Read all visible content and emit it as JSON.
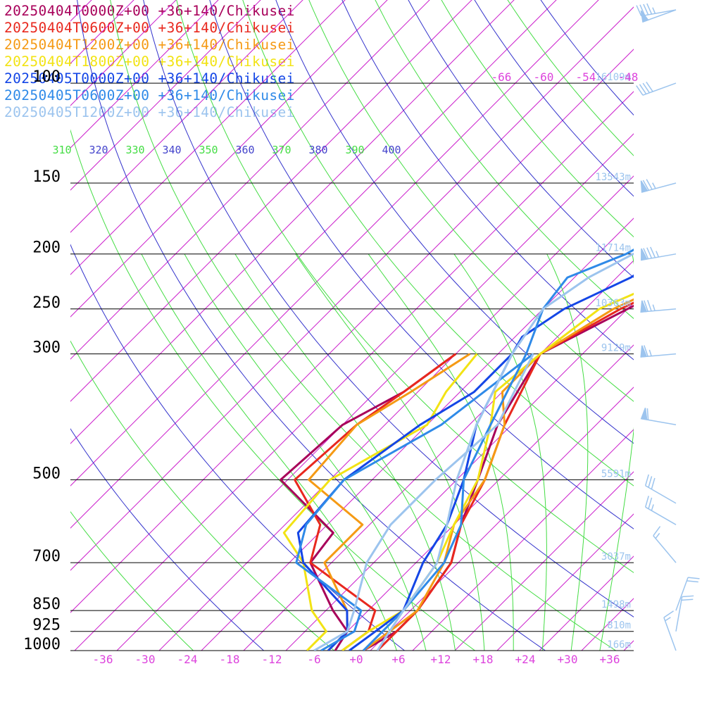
{
  "chart_data": {
    "type": "line",
    "title": "",
    "legend": {
      "placement": "top-left",
      "entries": [
        {
          "label": "20250404T0000Z+00 +36+140/Chikusei",
          "color": "#a8005a"
        },
        {
          "label": "20250404T0600Z+00 +36+140/Chikusei",
          "color": "#e8281e"
        },
        {
          "label": "20250404T1200Z+00 +36+140/Chikusei",
          "color": "#f59a14"
        },
        {
          "label": "20250404T1800Z+00 +36+140/Chikusei",
          "color": "#f2e314"
        },
        {
          "label": "20250405T0000Z+00 +36+140/Chikusei",
          "color": "#1446e6"
        },
        {
          "label": "20250405T0600Z+00 +36+140/Chikusei",
          "color": "#2f8ae8"
        },
        {
          "label": "20250405T1200Z+00 +36+140/Chikusei",
          "color": "#9cc4ee"
        }
      ]
    },
    "pressure_levels": [
      {
        "p": 100,
        "label": "100",
        "height": "16109m"
      },
      {
        "p": 150,
        "label": "150",
        "height": "13543m"
      },
      {
        "p": 200,
        "label": "200",
        "height": "11714m"
      },
      {
        "p": 250,
        "label": "250",
        "height": "10363m"
      },
      {
        "p": 300,
        "label": "300",
        "height": "9129m"
      },
      {
        "p": 500,
        "label": "500",
        "height": "5591m"
      },
      {
        "p": 700,
        "label": "700",
        "height": "3037m"
      },
      {
        "p": 850,
        "label": "850",
        "height": "1498m"
      },
      {
        "p": 925,
        "label": "925",
        "height": "810m"
      },
      {
        "p": 1000,
        "label": "1000",
        "height": "166m"
      }
    ],
    "x_ticks": [
      {
        "v": -36,
        "label": "-36"
      },
      {
        "v": -30,
        "label": "-30"
      },
      {
        "v": -24,
        "label": "-24"
      },
      {
        "v": -18,
        "label": "-18"
      },
      {
        "v": -12,
        "label": "-12"
      },
      {
        "v": -6,
        "label": "-6"
      },
      {
        "v": 0,
        "label": "+0"
      },
      {
        "v": 6,
        "label": "+6"
      },
      {
        "v": 12,
        "label": "+12"
      },
      {
        "v": 18,
        "label": "+18"
      },
      {
        "v": 24,
        "label": "+24"
      },
      {
        "v": 30,
        "label": "+30"
      },
      {
        "v": 36,
        "label": "+36"
      }
    ],
    "isotherm_labels_top": [
      {
        "v": -66,
        "label": "-66"
      },
      {
        "v": -60,
        "label": "-60"
      },
      {
        "v": -54,
        "label": "-54"
      },
      {
        "v": -48,
        "label": "-48"
      }
    ],
    "theta_labels": [
      {
        "label": "310",
        "color": "#44dd44"
      },
      {
        "label": "320",
        "color": "#4444cc"
      },
      {
        "label": "330",
        "color": "#44dd44"
      },
      {
        "label": "340",
        "color": "#4444cc"
      },
      {
        "label": "350",
        "color": "#44dd44"
      },
      {
        "label": "360",
        "color": "#4444cc"
      },
      {
        "label": "370",
        "color": "#44dd44"
      },
      {
        "label": "380",
        "color": "#4444cc"
      },
      {
        "label": "390",
        "color": "#44dd44"
      },
      {
        "label": "400",
        "color": "#4444cc"
      }
    ],
    "series": [
      {
        "name": "20250404T0000Z+00 +36+140/Chikusei",
        "color": "#a8005a",
        "temperature": [
          [
            1000,
            1
          ],
          [
            925,
            3
          ],
          [
            850,
            3
          ],
          [
            700,
            1
          ],
          [
            600,
            -3
          ],
          [
            500,
            -7
          ],
          [
            400,
            -12
          ],
          [
            300,
            -16
          ],
          [
            250,
            -10
          ],
          [
            200,
            -2
          ],
          [
            150,
            -2
          ],
          [
            120,
            -2
          ],
          [
            100,
            -1
          ],
          [
            92,
            -6
          ],
          [
            80,
            -6
          ],
          [
            50,
            -5
          ],
          [
            30,
            0
          ]
        ],
        "dewpoint": [
          [
            1000,
            -3
          ],
          [
            925,
            -4
          ],
          [
            850,
            -9
          ],
          [
            700,
            -19
          ],
          [
            620,
            -20
          ],
          [
            500,
            -35
          ],
          [
            400,
            -34
          ],
          [
            350,
            -30
          ],
          [
            300,
            -28
          ]
        ]
      },
      {
        "name": "20250404T0600Z+00 +36+140/Chikusei",
        "color": "#e8281e",
        "temperature": [
          [
            1000,
            3
          ],
          [
            925,
            3
          ],
          [
            850,
            3
          ],
          [
            700,
            1
          ],
          [
            600,
            -3
          ],
          [
            500,
            -6
          ],
          [
            400,
            -11
          ],
          [
            300,
            -16
          ],
          [
            250,
            -11
          ],
          [
            200,
            -2
          ],
          [
            150,
            -2
          ],
          [
            100,
            -1
          ],
          [
            80,
            -6
          ],
          [
            50,
            -5
          ],
          [
            30,
            3
          ]
        ],
        "dewpoint": [
          [
            1000,
            -2
          ],
          [
            925,
            -1
          ],
          [
            850,
            -3
          ],
          [
            700,
            -19
          ],
          [
            600,
            -23
          ],
          [
            500,
            -33
          ],
          [
            400,
            -32
          ],
          [
            350,
            -30
          ],
          [
            300,
            -28
          ]
        ]
      },
      {
        "name": "20250404T1200Z+00 +36+140/Chikusei",
        "color": "#f59a14",
        "temperature": [
          [
            1000,
            1
          ],
          [
            925,
            2
          ],
          [
            850,
            3
          ],
          [
            700,
            0
          ],
          [
            600,
            -4
          ],
          [
            500,
            -6
          ],
          [
            400,
            -11
          ],
          [
            350,
            -16
          ],
          [
            300,
            -16
          ],
          [
            250,
            -12
          ],
          [
            200,
            -3
          ],
          [
            150,
            -2
          ],
          [
            100,
            0
          ],
          [
            92,
            -3
          ],
          [
            80,
            -5
          ],
          [
            50,
            -4
          ],
          [
            30,
            1
          ]
        ],
        "dewpoint": [
          [
            1000,
            -4
          ],
          [
            925,
            -4
          ],
          [
            850,
            -7
          ],
          [
            700,
            -17
          ],
          [
            600,
            -17
          ],
          [
            500,
            -31
          ],
          [
            400,
            -32
          ],
          [
            350,
            -29
          ],
          [
            300,
            -26
          ]
        ]
      },
      {
        "name": "20250404T1800Z+00 +36+140/Chikusei",
        "color": "#f2e314",
        "temperature": [
          [
            1000,
            -2
          ],
          [
            925,
            -1
          ],
          [
            850,
            1
          ],
          [
            700,
            -1
          ],
          [
            600,
            -4
          ],
          [
            500,
            -7
          ],
          [
            400,
            -13
          ],
          [
            350,
            -17
          ],
          [
            300,
            -16
          ],
          [
            250,
            -14
          ],
          [
            200,
            -4
          ],
          [
            150,
            -4
          ],
          [
            100,
            -1
          ],
          [
            80,
            -5
          ],
          [
            50,
            -5
          ],
          [
            30,
            0
          ]
        ],
        "dewpoint": [
          [
            1000,
            -7
          ],
          [
            925,
            -7
          ],
          [
            850,
            -12
          ],
          [
            700,
            -20
          ],
          [
            620,
            -27
          ],
          [
            500,
            -28
          ],
          [
            400,
            -22
          ],
          [
            350,
            -24
          ],
          [
            300,
            -25
          ]
        ]
      },
      {
        "name": "20250405T0000Z+00 +36+140/Chikusei",
        "color": "#1446e6",
        "temperature": [
          [
            1000,
            -1
          ],
          [
            925,
            0
          ],
          [
            850,
            1
          ],
          [
            700,
            -3
          ],
          [
            600,
            -5
          ],
          [
            500,
            -9
          ],
          [
            400,
            -15
          ],
          [
            300,
            -20
          ],
          [
            280,
            -21
          ],
          [
            250,
            -19
          ],
          [
            220,
            -14
          ],
          [
            200,
            -12
          ],
          [
            150,
            -6
          ],
          [
            120,
            -5
          ],
          [
            100,
            -6
          ],
          [
            80,
            -6
          ],
          [
            50,
            -5
          ],
          [
            30,
            -1
          ]
        ],
        "dewpoint": [
          [
            1000,
            -4
          ],
          [
            925,
            -4
          ],
          [
            850,
            -7
          ],
          [
            700,
            -20
          ],
          [
            620,
            -25
          ],
          [
            500,
            -26
          ],
          [
            400,
            -23
          ],
          [
            350,
            -20
          ],
          [
            300,
            -20
          ]
        ]
      },
      {
        "name": "20250405T0600Z+00 +36+140/Chikusei",
        "color": "#2f8ae8",
        "temperature": [
          [
            1000,
            1
          ],
          [
            925,
            1
          ],
          [
            850,
            1
          ],
          [
            700,
            0
          ],
          [
            600,
            -3
          ],
          [
            500,
            -9
          ],
          [
            400,
            -13
          ],
          [
            300,
            -18
          ],
          [
            250,
            -22
          ],
          [
            220,
            -23
          ],
          [
            200,
            -18
          ],
          [
            150,
            -10
          ],
          [
            100,
            -3
          ],
          [
            80,
            -5
          ],
          [
            50,
            -6
          ],
          [
            30,
            -2
          ]
        ],
        "dewpoint": [
          [
            1000,
            -5
          ],
          [
            925,
            -3
          ],
          [
            850,
            -5
          ],
          [
            700,
            -21
          ],
          [
            600,
            -25
          ],
          [
            500,
            -26
          ],
          [
            400,
            -20
          ],
          [
            300,
            -17
          ]
        ]
      },
      {
        "name": "20250405T1200Z+00 +36+140/Chikusei",
        "color": "#9cc4ee",
        "temperature": [
          [
            1000,
            3
          ],
          [
            925,
            2
          ],
          [
            850,
            1
          ],
          [
            700,
            -1
          ],
          [
            600,
            -5
          ],
          [
            500,
            -10
          ],
          [
            400,
            -15
          ],
          [
            300,
            -20
          ],
          [
            250,
            -22
          ],
          [
            220,
            -20
          ],
          [
            200,
            -17
          ],
          [
            180,
            -11
          ],
          [
            150,
            -8
          ],
          [
            120,
            -4
          ],
          [
            100,
            -2
          ],
          [
            90,
            -5
          ],
          [
            80,
            -4
          ],
          [
            50,
            -3
          ],
          [
            30,
            0
          ]
        ],
        "dewpoint": [
          [
            1000,
            -6
          ],
          [
            925,
            -4
          ],
          [
            850,
            -6
          ],
          [
            700,
            -11
          ],
          [
            600,
            -13
          ],
          [
            500,
            -13
          ],
          [
            400,
            -12
          ],
          [
            300,
            -17
          ]
        ]
      }
    ],
    "wind_barbs": [
      {
        "p": 1000,
        "speed_kt": 15,
        "from_deg": 340
      },
      {
        "p": 925,
        "speed_kt": 20,
        "from_deg": 10
      },
      {
        "p": 850,
        "speed_kt": 20,
        "from_deg": 20
      },
      {
        "p": 700,
        "speed_kt": 15,
        "from_deg": 320
      },
      {
        "p": 600,
        "speed_kt": 25,
        "from_deg": 300
      },
      {
        "p": 550,
        "speed_kt": 30,
        "from_deg": 300
      },
      {
        "p": 400,
        "speed_kt": 60,
        "from_deg": 280
      },
      {
        "p": 300,
        "speed_kt": 65,
        "from_deg": 265
      },
      {
        "p": 250,
        "speed_kt": 75,
        "from_deg": 265
      },
      {
        "p": 200,
        "speed_kt": 85,
        "from_deg": 260
      },
      {
        "p": 150,
        "speed_kt": 75,
        "from_deg": 255
      },
      {
        "p": 100,
        "speed_kt": 40,
        "from_deg": 250
      },
      {
        "p": 70,
        "speed_kt": 50,
        "from_deg": 250
      },
      {
        "p": 30,
        "speed_kt": 45,
        "from_deg": 260
      }
    ],
    "colors": {
      "isotherm": "#cc22cc",
      "isotherm_label": "#dd44dd",
      "dry_adiabat": "#44dd44",
      "moist_adiabat": "#3333cc",
      "height_label": "#9cc4ee",
      "wind_barb": "#9cc4ee",
      "pressure_line": "#000000"
    }
  }
}
